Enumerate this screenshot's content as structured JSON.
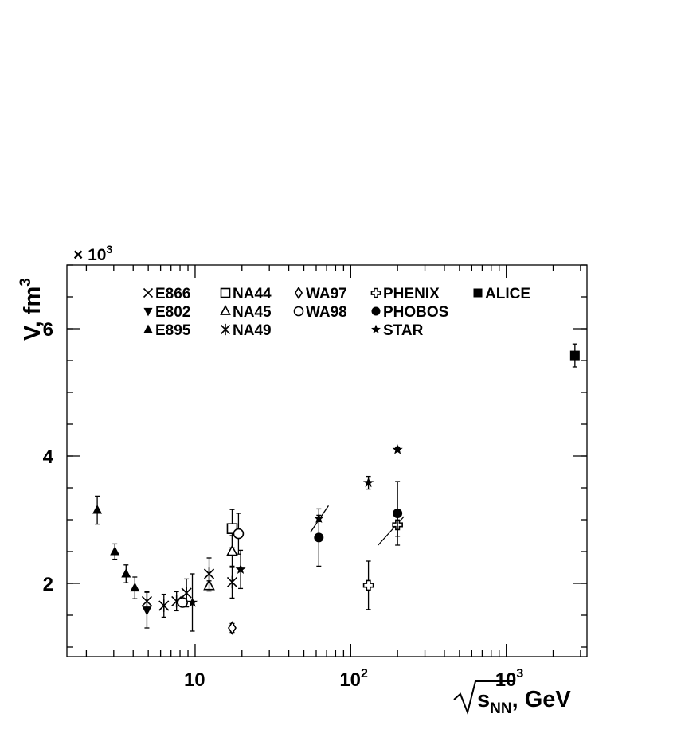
{
  "chart_data": {
    "type": "scatter",
    "title": "",
    "ylabel": "V, fm",
    "ylabel_sup": "3",
    "y_multiplier": "× 10",
    "y_multiplier_sup": "3",
    "xlabel_main": "s",
    "xlabel_sub": "NN",
    "xlabel_unit": ", GeV",
    "x_scale": "log",
    "xlim": [
      1.5,
      3300
    ],
    "ylim": [
      0.85,
      7.0
    ],
    "grid": false,
    "legend_placement": "top",
    "x_ticks": [
      {
        "label": "10",
        "sup": ""
      },
      {
        "label": "10",
        "sup": "2"
      },
      {
        "label": "10",
        "sup": "3"
      }
    ],
    "y_ticks": [
      {
        "label": "2"
      },
      {
        "label": "4"
      },
      {
        "label": "6"
      }
    ],
    "series": [
      {
        "name": "E866",
        "marker": "x",
        "points": [
          [
            4.9,
            1.72,
            0.15
          ]
        ]
      },
      {
        "name": "E802",
        "marker": "tri-down",
        "points": [
          [
            4.9,
            1.58,
            0.28
          ]
        ]
      },
      {
        "name": "E895",
        "marker": "tri-up",
        "points": [
          [
            2.35,
            3.15,
            0.22
          ],
          [
            3.05,
            2.5,
            0.12
          ],
          [
            3.6,
            2.15,
            0.14
          ],
          [
            4.1,
            1.93,
            0.17
          ]
        ]
      },
      {
        "name": "NA44",
        "marker": "square-open",
        "points": [
          [
            17.3,
            2.86,
            0.3
          ]
        ]
      },
      {
        "name": "NA45",
        "marker": "tri-open",
        "points": [
          [
            12.3,
            1.96,
            0.08
          ],
          [
            17.3,
            2.5,
            0.25
          ]
        ]
      },
      {
        "name": "NA49",
        "marker": "asterisk",
        "points": [
          [
            6.3,
            1.65,
            0.18
          ],
          [
            7.6,
            1.72,
            0.15
          ],
          [
            8.8,
            1.85,
            0.22
          ],
          [
            12.3,
            2.15,
            0.25
          ],
          [
            17.3,
            2.02,
            0.25
          ]
        ]
      },
      {
        "name": "WA97",
        "marker": "diamond-open",
        "points": [
          [
            17.3,
            1.3,
            0.07
          ]
        ]
      },
      {
        "name": "WA98",
        "marker": "circle-open",
        "points": [
          [
            19.0,
            2.78,
            0.32
          ],
          [
            8.3,
            1.7,
            0.0
          ]
        ]
      },
      {
        "name": "PHENIX",
        "marker": "cross-open",
        "points": [
          [
            130,
            1.97,
            0.38
          ],
          [
            200,
            2.92,
            0.18
          ]
        ]
      },
      {
        "name": "PHOBOS",
        "marker": "circle",
        "points": [
          [
            62.4,
            2.72,
            0.45
          ],
          [
            200,
            3.1,
            0.5
          ]
        ]
      },
      {
        "name": "STAR",
        "marker": "star",
        "points": [
          [
            9.6,
            1.7,
            0.45
          ],
          [
            19.6,
            2.22,
            0.3
          ],
          [
            62.4,
            3.02,
            0.05
          ],
          [
            130,
            3.58,
            0.1
          ],
          [
            200,
            4.1,
            0.03
          ]
        ]
      },
      {
        "name": "ALICE",
        "marker": "square",
        "points": [
          [
            2760,
            5.58,
            0.18
          ]
        ]
      }
    ],
    "trend_lines": [
      {
        "x": [
          55,
          72
        ],
        "y": [
          2.8,
          3.22
        ]
      },
      {
        "x": [
          150,
          220
        ],
        "y": [
          2.6,
          3.05
        ]
      }
    ]
  }
}
